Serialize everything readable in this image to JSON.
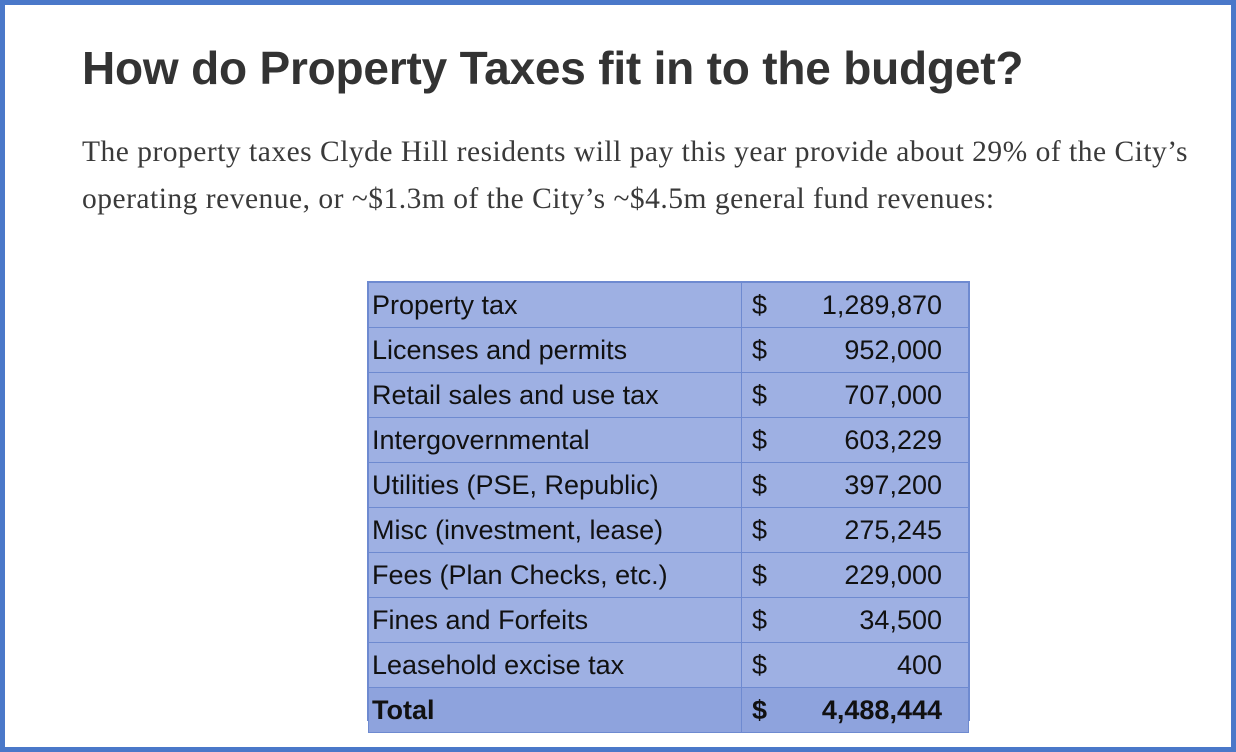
{
  "heading": "How do Property Taxes fit in to the budget?",
  "intro": "The property taxes Clyde Hill residents will pay this year provide about 29% of the City’s operating revenue, or ~$1.3m of the City’s ~$4.5m general fund revenues:",
  "table": {
    "currency": "$",
    "rows": [
      {
        "label": "Property tax",
        "amount": "1,289,870"
      },
      {
        "label": "Licenses and permits",
        "amount": "952,000"
      },
      {
        "label": "Retail sales and use tax",
        "amount": "707,000"
      },
      {
        "label": "Intergovernmental",
        "amount": "603,229"
      },
      {
        "label": "Utilities (PSE, Republic)",
        "amount": "397,200"
      },
      {
        "label": "Misc (investment, lease)",
        "amount": "275,245"
      },
      {
        "label": "Fees (Plan Checks, etc.)",
        "amount": "229,000"
      },
      {
        "label": "Fines and Forfeits",
        "amount": "34,500"
      },
      {
        "label": "Leasehold excise tax",
        "amount": "400"
      }
    ],
    "total": {
      "label": "Total",
      "amount": "4,488,444"
    }
  },
  "colors": {
    "frame_border": "#4a78c9",
    "table_fill": "#9eb0e3",
    "table_grid": "#6e8ad0",
    "heading_text": "#333333"
  }
}
